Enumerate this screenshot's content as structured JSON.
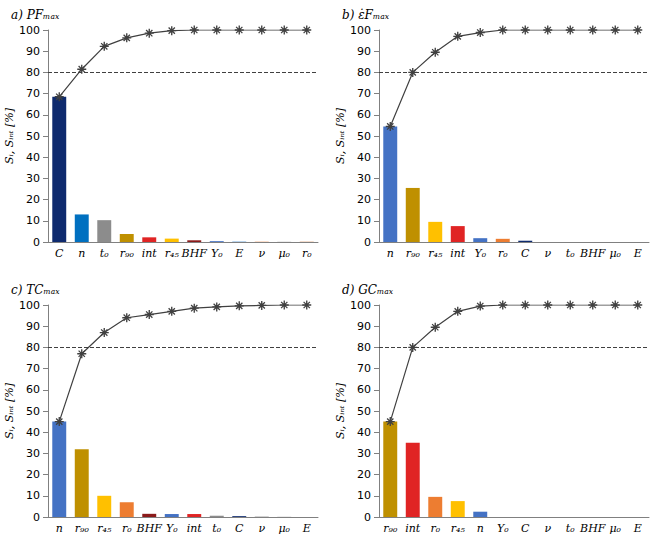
{
  "chart_data": [
    {
      "type": "bar",
      "title": "a) PFₘₐₓ",
      "ylabel": "Sᵢ, Sᵢₙₜ [%]",
      "categories": [
        "C",
        "n",
        "t₀",
        "r₉₀",
        "int",
        "r₄₅",
        "BHF",
        "Y₀",
        "E",
        "ν",
        "μ₀",
        "r₀"
      ],
      "ylim": [
        0,
        100
      ],
      "yticks": [
        0,
        10,
        20,
        30,
        40,
        50,
        60,
        70,
        80,
        90,
        100
      ],
      "threshold": 80,
      "series": [
        {
          "type": "bar",
          "values": [
            68.5,
            13,
            10.3,
            3.8,
            2.2,
            1.6,
            0.8,
            0.4,
            0.2,
            0.1,
            0.1,
            0.1
          ],
          "colors": [
            "#0e2a6e",
            "#0070c0",
            "#8c8c8c",
            "#bf9000",
            "#e02424",
            "#ffc000",
            "#8b1a1a",
            "#4472c4",
            "#5b9bd5",
            "#ed7d31",
            "#a5a5a5",
            "#c55a11"
          ]
        },
        {
          "type": "line",
          "values": [
            68.5,
            81.5,
            92.3,
            96.3,
            98.5,
            99.7,
            100,
            100,
            100,
            100,
            100,
            100
          ],
          "color": "#404040",
          "marker": "asterisk"
        }
      ]
    },
    {
      "type": "bar",
      "title": "b) ε̇Fₘₐₓ",
      "ylabel": "Sᵢ, Sᵢₙₜ [%]",
      "categories": [
        "n",
        "r₉₀",
        "r₄₅",
        "int",
        "Y₀",
        "r₀",
        "C",
        "ν",
        "t₀",
        "BHF",
        "μ₀",
        "E"
      ],
      "ylim": [
        0,
        100
      ],
      "yticks": [
        0,
        10,
        20,
        30,
        40,
        50,
        60,
        70,
        80,
        90,
        100
      ],
      "threshold": 80,
      "series": [
        {
          "type": "bar",
          "values": [
            54.5,
            25.5,
            9.5,
            7.5,
            1.8,
            1.5,
            0.6,
            0,
            0,
            0,
            0,
            0
          ],
          "colors": [
            "#4472c4",
            "#bf9000",
            "#ffc000",
            "#e02424",
            "#4472c4",
            "#ed7d31",
            "#0e2a6e",
            "#a5a5a5",
            "#8c8c8c",
            "#8b1a1a",
            "#a5a5a5",
            "#5b9bd5"
          ]
        },
        {
          "type": "line",
          "values": [
            54.5,
            80,
            89.5,
            97,
            98.8,
            100,
            100,
            100,
            100,
            100,
            100,
            100
          ],
          "color": "#404040",
          "marker": "asterisk"
        }
      ]
    },
    {
      "type": "bar",
      "title": "c) TCₘₐₓ",
      "ylabel": "Sᵢ, Sᵢₙₜ [%]",
      "categories": [
        "n",
        "r₉₀",
        "r₄₅",
        "r₀",
        "BHF",
        "Y₀",
        "int",
        "t₀",
        "C",
        "ν",
        "μ₀",
        "E"
      ],
      "ylim": [
        0,
        100
      ],
      "yticks": [
        0,
        10,
        20,
        30,
        40,
        50,
        60,
        70,
        80,
        90,
        100
      ],
      "threshold": 80,
      "series": [
        {
          "type": "bar",
          "values": [
            45,
            32,
            10,
            7,
            1.5,
            1.4,
            1.4,
            0.6,
            0.4,
            0.2,
            0.1,
            0
          ],
          "colors": [
            "#4472c4",
            "#bf9000",
            "#ffc000",
            "#ed7d31",
            "#8b1a1a",
            "#4472c4",
            "#e02424",
            "#8c8c8c",
            "#0e2a6e",
            "#a5a5a5",
            "#a5a5a5",
            "#5b9bd5"
          ]
        },
        {
          "type": "line",
          "values": [
            45,
            77,
            87,
            94,
            95.5,
            97,
            98.5,
            99.1,
            99.6,
            99.8,
            100,
            100
          ],
          "color": "#404040",
          "marker": "asterisk"
        }
      ]
    },
    {
      "type": "bar",
      "title": "d) GCₘₐₓ",
      "ylabel": "Sᵢ, Sᵢₙₜ [%]",
      "categories": [
        "r₉₀",
        "int",
        "r₀",
        "r₄₅",
        "n",
        "Y₀",
        "C",
        "ν",
        "t₀",
        "BHF",
        "μ₀",
        "E"
      ],
      "ylim": [
        0,
        100
      ],
      "yticks": [
        0,
        10,
        20,
        30,
        40,
        50,
        60,
        70,
        80,
        90,
        100
      ],
      "threshold": 80,
      "series": [
        {
          "type": "bar",
          "values": [
            45,
            35,
            9.5,
            7.5,
            2.5,
            0,
            0,
            0,
            0,
            0,
            0,
            0
          ],
          "colors": [
            "#bf9000",
            "#e02424",
            "#ed7d31",
            "#ffc000",
            "#4472c4",
            "#4472c4",
            "#0e2a6e",
            "#a5a5a5",
            "#8c8c8c",
            "#8b1a1a",
            "#a5a5a5",
            "#5b9bd5"
          ]
        },
        {
          "type": "line",
          "values": [
            45,
            80,
            89.5,
            97,
            99.5,
            100,
            100,
            100,
            100,
            100,
            100,
            100
          ],
          "color": "#404040",
          "marker": "asterisk"
        }
      ]
    }
  ]
}
